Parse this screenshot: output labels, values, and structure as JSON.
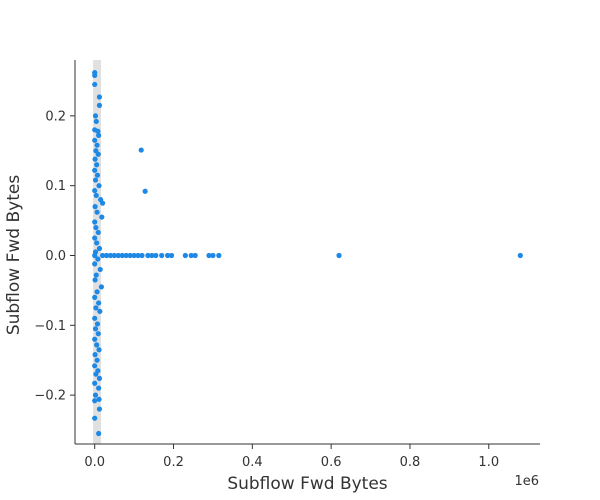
{
  "chart_data": {
    "type": "scatter",
    "xlabel": "Subflow Fwd Bytes",
    "ylabel": "Subflow Fwd Bytes",
    "x_offset_label": "1e6",
    "xlim": [
      -50000,
      1130000
    ],
    "ylim": [
      -0.27,
      0.28
    ],
    "x_ticks": [
      0,
      200000,
      400000,
      600000,
      800000,
      1000000
    ],
    "x_tick_labels": [
      "0.0",
      "0.2",
      "0.4",
      "0.6",
      "0.8",
      "1.0"
    ],
    "y_ticks": [
      -0.2,
      -0.1,
      0.0,
      0.1,
      0.2
    ],
    "y_tick_labels": [
      "−0.2",
      "−0.1",
      "0.0",
      "0.1",
      "0.2"
    ],
    "point_color": "#1e88e5",
    "histogram_band_color": "#e0e0e0",
    "histogram_band_x": [
      -4000,
      16000
    ],
    "grid": false,
    "series": [
      {
        "values": [
          [
            0,
            0.262
          ],
          [
            0,
            0.258
          ],
          [
            0,
            0.245
          ],
          [
            12000,
            0.227
          ],
          [
            12000,
            0.215
          ],
          [
            2000,
            0.2
          ],
          [
            4000,
            0.192
          ],
          [
            0,
            0.18
          ],
          [
            8000,
            0.178
          ],
          [
            10000,
            0.172
          ],
          [
            0,
            0.165
          ],
          [
            6000,
            0.158
          ],
          [
            3000,
            0.15
          ],
          [
            9000,
            0.145
          ],
          [
            1000,
            0.138
          ],
          [
            5000,
            0.13
          ],
          [
            0,
            0.122
          ],
          [
            7000,
            0.115
          ],
          [
            2000,
            0.108
          ],
          [
            11000,
            0.1
          ],
          [
            0,
            0.093
          ],
          [
            4000,
            0.086
          ],
          [
            15000,
            0.08
          ],
          [
            20000,
            0.075
          ],
          [
            1000,
            0.07
          ],
          [
            6000,
            0.062
          ],
          [
            18000,
            0.055
          ],
          [
            0,
            0.048
          ],
          [
            3000,
            0.04
          ],
          [
            9000,
            0.033
          ],
          [
            0,
            0.025
          ],
          [
            5000,
            0.018
          ],
          [
            12000,
            0.01
          ],
          [
            2000,
            0.005
          ],
          [
            8000,
            -0.005
          ],
          [
            0,
            -0.012
          ],
          [
            14000,
            -0.02
          ],
          [
            4000,
            -0.028
          ],
          [
            1000,
            -0.035
          ],
          [
            17000,
            -0.045
          ],
          [
            6000,
            -0.052
          ],
          [
            0,
            -0.06
          ],
          [
            10000,
            -0.068
          ],
          [
            3000,
            -0.075
          ],
          [
            13000,
            -0.08
          ],
          [
            0,
            -0.09
          ],
          [
            7000,
            -0.098
          ],
          [
            2000,
            -0.105
          ],
          [
            9000,
            -0.112
          ],
          [
            0,
            -0.12
          ],
          [
            5000,
            -0.128
          ],
          [
            11000,
            -0.135
          ],
          [
            1000,
            -0.142
          ],
          [
            6000,
            -0.15
          ],
          [
            0,
            -0.158
          ],
          [
            8000,
            -0.165
          ],
          [
            3000,
            -0.17
          ],
          [
            12000,
            -0.176
          ],
          [
            0,
            -0.183
          ],
          [
            10000,
            -0.19
          ],
          [
            2000,
            -0.2
          ],
          [
            0,
            -0.208
          ],
          [
            11000,
            -0.206
          ],
          [
            0,
            -0.233
          ],
          [
            12000,
            -0.22
          ],
          [
            10000,
            -0.255
          ],
          [
            0,
            0.0
          ],
          [
            20000,
            0.0
          ],
          [
            30000,
            0.0
          ],
          [
            40000,
            0.0
          ],
          [
            50000,
            0.0
          ],
          [
            60000,
            0.0
          ],
          [
            70000,
            0.0
          ],
          [
            80000,
            0.0
          ],
          [
            90000,
            0.0
          ],
          [
            100000,
            0.0
          ],
          [
            110000,
            0.0
          ],
          [
            120000,
            0.0
          ],
          [
            135000,
            0.0
          ],
          [
            145000,
            0.0
          ],
          [
            155000,
            0.0
          ],
          [
            170000,
            0.0
          ],
          [
            185000,
            0.0
          ],
          [
            195000,
            0.0
          ],
          [
            230000,
            0.0
          ],
          [
            245000,
            0.0
          ],
          [
            255000,
            0.0
          ],
          [
            290000,
            0.0
          ],
          [
            300000,
            0.0
          ],
          [
            315000,
            0.0
          ],
          [
            620000,
            0.0
          ],
          [
            1080000,
            0.0
          ],
          [
            118000,
            0.151
          ],
          [
            128000,
            0.092
          ]
        ]
      }
    ]
  }
}
